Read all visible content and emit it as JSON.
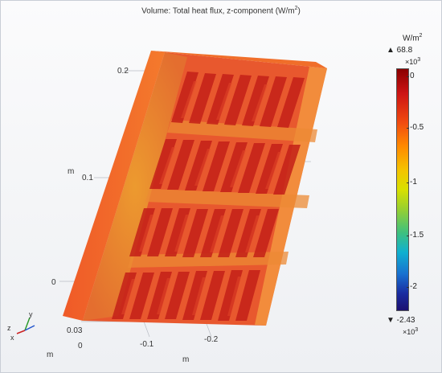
{
  "plot": {
    "title_prefix": "Volume: Total heat flux, z-component (W/m",
    "title_exp": "2",
    "title_suffix": ")"
  },
  "axes": {
    "z_ticks": [
      "0.2",
      "0.1",
      "0"
    ],
    "z_unit": "m",
    "y_tick": "0.03",
    "y_unit": "m",
    "x_ticks": [
      "0",
      "-0.1",
      "-0.2"
    ],
    "x_unit": "m"
  },
  "triad": {
    "x": "x",
    "y": "y",
    "z": "z"
  },
  "legend": {
    "unit_base": "W/m",
    "unit_exp": "2",
    "max_value": "▲ 68.8",
    "min_value": "▼ -2.43",
    "scale_base": "×10",
    "scale_exp": "3",
    "ticks": [
      "0",
      "-0.5",
      "-1",
      "-1.5",
      "-2"
    ]
  },
  "colormap": {
    "high": "#8b0000",
    "mid": "#f4c400",
    "low": "#1c1070"
  }
}
